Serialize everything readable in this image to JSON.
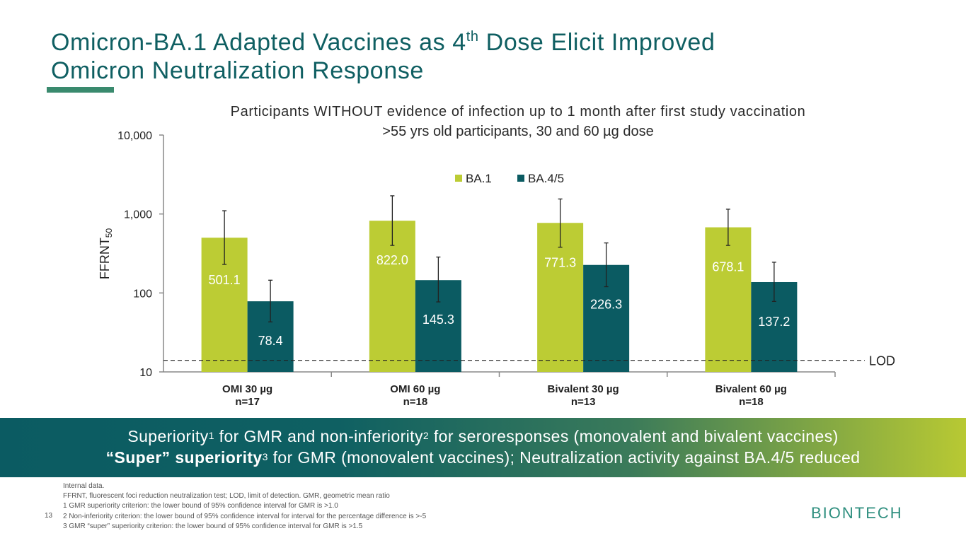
{
  "slide": {
    "title_line1_pre": "Omicron-BA.1 Adapted Vaccines as 4",
    "title_line1_sup": "th",
    "title_line1_post": " Dose Elicit Improved",
    "title_line2": "Omicron Neutralization Response",
    "page_number": "13",
    "logo_text": "BIONTECH"
  },
  "chart_data": {
    "type": "bar",
    "title": "Participants WITHOUT evidence of infection up to 1 month after first study vaccination",
    "subtitle": ">55 yrs old participants, 30 and 60 µg dose",
    "ylabel": "FFRNT",
    "ylabel_sub": "50",
    "yscale": "log",
    "ylim": [
      10,
      10000
    ],
    "yticks": [
      "10",
      "100",
      "1,000",
      "10,000"
    ],
    "ytick_values": [
      10,
      100,
      1000,
      10000
    ],
    "categories": [
      "OMI 30  µg",
      "OMI 60  µg",
      "Bivalent 30  µg",
      "Bivalent 60  µg"
    ],
    "category_n": [
      "n=17",
      "n=18",
      "n=13",
      "n=18"
    ],
    "series": [
      {
        "name": "BA.1",
        "color": "#bccc34",
        "values": [
          501.1,
          822.0,
          771.3,
          678.1
        ],
        "labels": [
          "501.1",
          "822.0",
          "771.3",
          "678.1"
        ],
        "ci_low": [
          230,
          400,
          380,
          400
        ],
        "ci_high": [
          1100,
          1700,
          1550,
          1150
        ]
      },
      {
        "name": "BA.4/5",
        "color": "#0b5b62",
        "values": [
          78.4,
          145.3,
          226.3,
          137.2
        ],
        "labels": [
          "78.4",
          "145.3",
          "226.3",
          "137.2"
        ],
        "ci_low": [
          43,
          77,
          120,
          78
        ],
        "ci_high": [
          145,
          285,
          430,
          245
        ]
      }
    ],
    "lod_value": 14,
    "lod_label": "LOD",
    "legend_position": "top-center"
  },
  "banner": {
    "line1_a": "Superiority",
    "line1_sup1": "1",
    "line1_b": " for GMR and non-inferiority",
    "line1_sup2": "2",
    "line1_c": " for seroresponses (monovalent and bivalent vaccines)",
    "line2_bold": "“Super” superiority",
    "line2_sup": "3",
    "line2_rest": " for GMR (monovalent vaccines); Neutralization activity against BA.4/5 reduced"
  },
  "footnotes": [
    "Internal data.",
    "FFRNT, fluorescent foci reduction neutralization test; LOD, limit of detection. GMR, geometric mean ratio",
    "1 GMR superiority criterion: the lower bound of 95% confidence interval for GMR is >1.0",
    "2 Non-inferiority criterion: the lower bound of 95% confidence interval for interval for the percentage difference is >-5",
    "3 GMR “super” superiority criterion: the lower bound of 95% confidence interval for GMR is >1.5"
  ]
}
